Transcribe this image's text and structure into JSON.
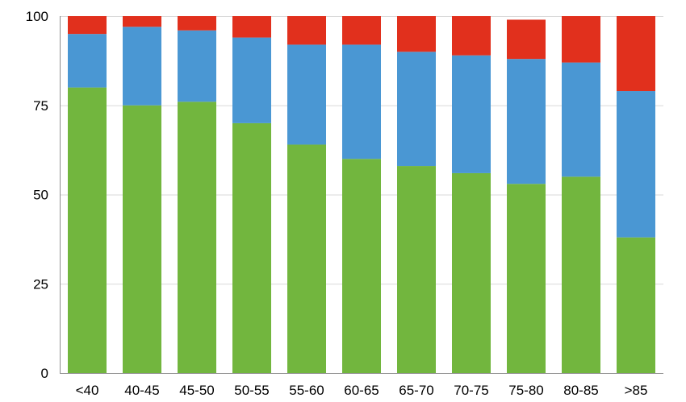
{
  "chart_data": {
    "type": "bar",
    "stacked": true,
    "title": "",
    "xlabel": "",
    "ylabel": "",
    "legend": "none",
    "grid": true,
    "ylim": [
      0,
      100
    ],
    "yticks": [
      "0",
      "25",
      "50",
      "75",
      "100"
    ],
    "categories": [
      "<40",
      "40-45",
      "45-50",
      "50-55",
      "55-60",
      "60-65",
      "65-70",
      "70-75",
      "75-80",
      "80-85",
      ">85"
    ],
    "series": [
      {
        "color": "#72b63e",
        "values": [
          80,
          75,
          76,
          70,
          64,
          60,
          58,
          56,
          53,
          55,
          38
        ]
      },
      {
        "color": "#4a97d3",
        "values": [
          15,
          22,
          20,
          24,
          28,
          32,
          32,
          33,
          35,
          32,
          41
        ]
      },
      {
        "color": "#e1301d",
        "values": [
          5,
          3,
          4,
          6,
          8,
          8,
          10,
          11,
          11,
          13,
          21
        ]
      }
    ]
  }
}
